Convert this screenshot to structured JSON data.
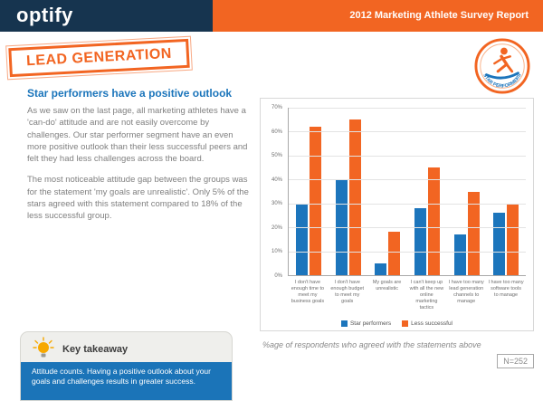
{
  "header": {
    "logo": "optify",
    "report_title": "2012 Marketing Athlete Survey Report"
  },
  "stamp": {
    "label": "LEAD GENERATION"
  },
  "badge": {
    "label": "STAR PERFORMERS"
  },
  "main": {
    "heading": "Star performers have a positive outlook",
    "paragraph1": "As we saw on the last page, all marketing athletes have a 'can-do' attitude and are not easily overcome by challenges.  Our star performer segment have an even more positive outlook than their less successful peers and felt they had less challenges across the board.",
    "paragraph2": "The most noticeable attitude gap between the groups was for the statement 'my goals are unrealistic'.  Only 5% of the stars agreed with this statement compared to 18% of the less successful group."
  },
  "chart_data": {
    "type": "bar",
    "categories": [
      "I don't have enough time to meet my business goals",
      "I don't have enough budget to meet my goals",
      "My goals are unrealistic",
      "I can't keep up with all the new online marketing tactics",
      "I have too many lead generation channels to manage",
      "I have too many software tools to manage"
    ],
    "series": [
      {
        "name": "Star performers",
        "color": "#1c75bc",
        "values": [
          30,
          40,
          5,
          28,
          17,
          26
        ]
      },
      {
        "name": "Less successful",
        "color": "#f26522",
        "values": [
          62,
          65,
          18,
          45,
          35,
          30
        ]
      }
    ],
    "title": "",
    "xlabel": "",
    "ylabel": "",
    "ylim": [
      0,
      70
    ],
    "yticks": [
      "70%",
      "60%",
      "50%",
      "40%",
      "30%",
      "20%",
      "10%",
      "0%"
    ],
    "grid": true,
    "legend_position": "bottom"
  },
  "chart_note": "%age of respondents who agreed with the statements above",
  "sample_size": "N=252",
  "takeaway": {
    "title": "Key takeaway",
    "text": "Attitude counts.  Having a positive outlook about your goals and challenges results in greater success."
  },
  "colors": {
    "navy": "#16344f",
    "orange": "#f26522",
    "blue": "#1b75bb"
  }
}
